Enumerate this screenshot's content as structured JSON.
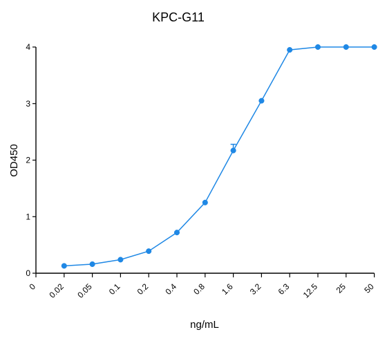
{
  "chart_data": {
    "type": "line",
    "title": "KPC-G11",
    "xlabel": "ng/mL",
    "ylabel": "OD450",
    "x_tick_labels": [
      "0",
      "0.02",
      "0.05",
      "0.1",
      "0.2",
      "0.4",
      "0.8",
      "1.6",
      "3.2",
      "6.3",
      "12.5",
      "25",
      "50"
    ],
    "y_tick_labels": [
      "0",
      "1",
      "2",
      "3",
      "4"
    ],
    "ylim": [
      0,
      4
    ],
    "grid": false,
    "x_scale": "categorical",
    "series": [
      {
        "categories": [
          "0.02",
          "0.05",
          "0.1",
          "0.2",
          "0.4",
          "0.8",
          "1.6",
          "3.2",
          "6.3",
          "12.5",
          "25",
          "50"
        ],
        "values": [
          0.13,
          0.16,
          0.24,
          0.39,
          0.72,
          1.25,
          2.17,
          3.05,
          3.95,
          4.0,
          4.0,
          4.0
        ],
        "error_upper": [
          0,
          0,
          0,
          0,
          0,
          0,
          0.11,
          0,
          0,
          0,
          0,
          0
        ],
        "color": "#1f88e5",
        "marker": "circle"
      }
    ]
  }
}
